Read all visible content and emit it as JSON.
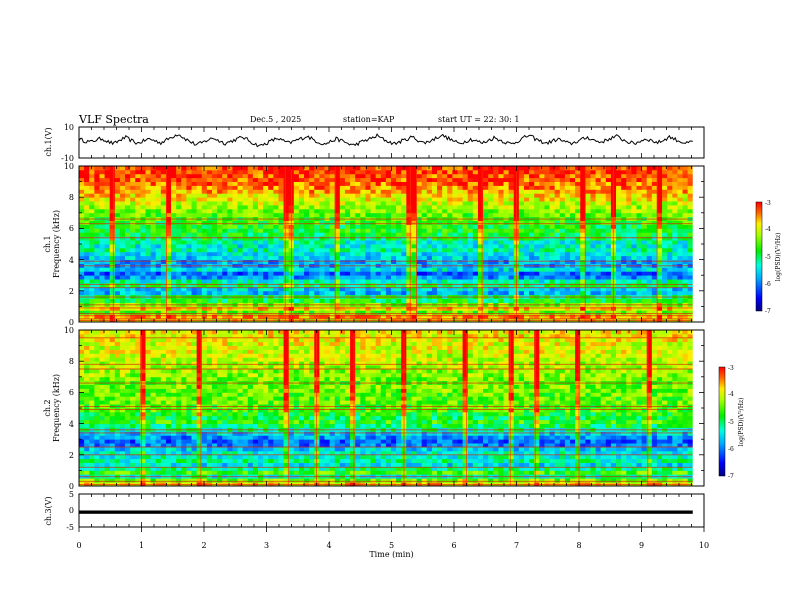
{
  "header": {
    "title": "VLF Spectra",
    "date": "Dec.5  , 2025",
    "station": "station=KAP",
    "start_ut": "start  UT  =   22: 30: 1"
  },
  "chart_data": [
    {
      "type": "line",
      "name": "ch1-waveform",
      "ylabel": "ch.1(V)",
      "ylim": [
        -10,
        10
      ],
      "yticks": [
        "10",
        "-10"
      ],
      "xlim": [
        0,
        10
      ],
      "x_extent": [
        0,
        9.82
      ],
      "values": [
        2.1,
        1.0,
        0.3,
        1.8,
        2.6,
        0.4,
        -0.8,
        1.5,
        3.2,
        1.2,
        -0.6,
        0.9,
        2.4,
        1.1,
        -0.2,
        1.7,
        3.8,
        5.6,
        2.8,
        0.6,
        -1.4,
        -0.3,
        1.6,
        2.9,
        1.0,
        -0.5,
        0.8,
        2.2,
        3.5,
        1.4,
        -0.9,
        -2.2,
        -0.6,
        1.3,
        2.7,
        0.9,
        -0.4,
        1.2,
        2.5,
        4.1,
        2.0,
        0.2,
        -1.1,
        0.5,
        2.3,
        1.1,
        -0.7,
        -1.8,
        -0.2,
        1.4,
        2.6,
        4.4,
        2.2,
        0.4,
        -0.8,
        0.7,
        2.0,
        3.6,
        1.5,
        -0.3,
        0.9,
        2.7,
        4.8,
        3.0,
        1.1,
        -0.6,
        0.6,
        2.1,
        1.0,
        -0.4,
        1.3,
        3.1,
        1.6,
        0.1,
        -1.0,
        0.8,
        2.9,
        4.6,
        2.4,
        0.7,
        -0.5,
        1.0,
        2.2,
        0.6,
        -0.9,
        0.4,
        1.9,
        3.3,
        1.7,
        0.2,
        1.1,
        2.8,
        4.0,
        1.9,
        0.3,
        -0.8,
        0.9,
        2.4,
        1.2,
        -0.1,
        1.5,
        3.7,
        2.0,
        0.5,
        -0.6,
        0.7
      ],
      "color": "#000000"
    },
    {
      "type": "heatmap",
      "name": "ch1-spectrogram",
      "ylabel": "ch.1",
      "ylabel2": "Frequency  (kHz)",
      "ylim": [
        0,
        10
      ],
      "yticks": [
        "0",
        "2",
        "4",
        "6",
        "8",
        "10"
      ],
      "xlim": [
        0,
        10
      ],
      "x_extent": [
        0,
        9.82
      ],
      "time_bins": 120,
      "band_levels": [
        -3.9,
        -3.6,
        -4.5,
        -3.8,
        -4.4,
        -4.9,
        -5.0,
        -5.7,
        -5.6,
        -5.0,
        -5.3,
        -5.9,
        -6.1,
        -5.5,
        -5.8,
        -5.8,
        -5.6,
        -5.5,
        -5.2,
        -5.4,
        -5.3,
        -5.0,
        -4.9,
        -4.8,
        -4.8,
        -4.7,
        -4.6,
        -4.5,
        -4.3,
        -4.2,
        -4.1,
        -3.9,
        -3.8,
        -3.6,
        -3.5,
        -3.4,
        -3.3,
        -3.3,
        -3.2,
        -3.2
      ],
      "lines_khz": [
        0.1,
        0.2,
        0.4,
        0.55,
        0.9,
        1.1,
        1.6,
        2.2,
        2.4,
        3.6,
        3.9,
        5.4,
        6.3,
        6.6
      ],
      "spike_times_min": [
        0.55,
        1.4,
        3.3,
        3.4,
        4.1,
        5.3,
        5.4,
        6.45,
        7.0,
        8.1,
        8.55,
        9.25
      ],
      "colorbar": {
        "label": "log(PSD)(V²/Hz)",
        "range": [
          -7,
          -3
        ],
        "ticks": [
          "-3",
          "-4",
          "-5",
          "-6",
          "-7"
        ]
      }
    },
    {
      "type": "heatmap",
      "name": "ch2-spectrogram",
      "ylabel": "ch.2",
      "ylabel2": "Frequency  (kHz)",
      "ylim": [
        0,
        10
      ],
      "yticks": [
        "0",
        "2",
        "4",
        "6",
        "8",
        "10"
      ],
      "xlim": [
        0,
        10
      ],
      "x_extent": [
        0,
        9.82
      ],
      "time_bins": 120,
      "band_levels": [
        -3.8,
        -4.4,
        -5.3,
        -4.6,
        -5.1,
        -5.5,
        -5.2,
        -5.3,
        -5.4,
        -5.6,
        -6.0,
        -6.1,
        -5.9,
        -5.6,
        -5.2,
        -5.0,
        -4.7,
        -4.9,
        -4.8,
        -4.6,
        -4.6,
        -4.5,
        -4.5,
        -4.5,
        -4.4,
        -4.4,
        -4.5,
        -4.4,
        -4.3,
        -4.3,
        -4.2,
        -4.2,
        -4.1,
        -4.1,
        -4.0,
        -4.0,
        -4.0,
        -3.9,
        -3.9,
        -3.9
      ],
      "lines_khz": [
        0.1,
        0.3,
        0.6,
        1.2,
        2.0,
        2.5,
        3.4,
        3.6,
        4.9,
        5.1,
        6.6,
        7.5,
        7.8,
        9.5
      ],
      "spike_times_min": [
        1.0,
        1.95,
        3.35,
        3.8,
        4.4,
        5.2,
        6.2,
        6.9,
        7.3,
        8.0,
        9.1
      ],
      "colorbar": {
        "label": "log(PSD)(V²/Hz)",
        "range": [
          -7,
          -3
        ],
        "ticks": [
          "-3",
          "-4",
          "-5",
          "-6",
          "-7"
        ]
      }
    },
    {
      "type": "line",
      "name": "ch3-waveform",
      "ylabel": "ch.3(V)",
      "ylim": [
        -5,
        5
      ],
      "yticks": [
        "5",
        "0",
        "-5"
      ],
      "xlim": [
        0,
        10
      ],
      "x_extent": [
        0,
        9.82
      ],
      "values": [
        -0.5,
        -0.5
      ],
      "band_halfwidth_v": 0.5,
      "color": "#000000"
    }
  ],
  "time_axis": {
    "xlabel": "Time  (min)",
    "ticks": [
      "0",
      "1",
      "2",
      "3",
      "4",
      "5",
      "6",
      "7",
      "8",
      "9",
      "10"
    ]
  }
}
